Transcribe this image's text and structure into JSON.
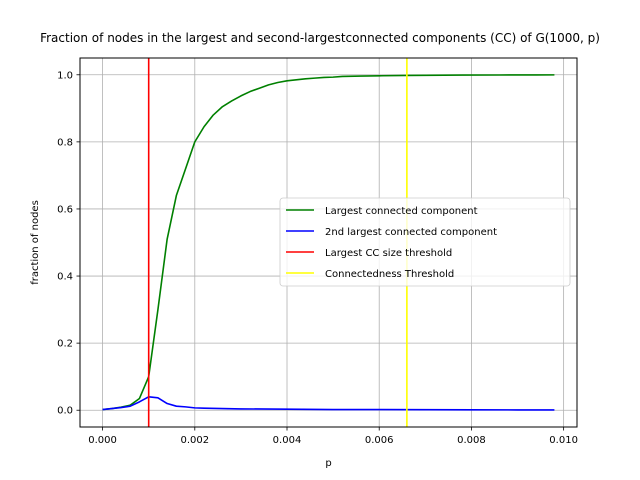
{
  "chart_data": {
    "type": "line",
    "title": "Fraction of nodes in the largest and second-largestconnected components (CC) of G(1000, p)",
    "xlabel": "p",
    "ylabel": "fraction of nodes",
    "xlim": [
      -0.00049,
      0.01029
    ],
    "ylim": [
      -0.05,
      1.05
    ],
    "xticks": [
      0.0,
      0.002,
      0.004,
      0.006,
      0.008,
      0.01
    ],
    "xtick_labels": [
      "0.000",
      "0.002",
      "0.004",
      "0.006",
      "0.008",
      "0.010"
    ],
    "yticks": [
      0.0,
      0.2,
      0.4,
      0.6,
      0.8,
      1.0
    ],
    "ytick_labels": [
      "0.0",
      "0.2",
      "0.4",
      "0.6",
      "0.8",
      "1.0"
    ],
    "grid": true,
    "legend_position": "center-right",
    "series": [
      {
        "name": "Largest connected component",
        "color": "#008000",
        "x": [
          0.0,
          0.0002,
          0.0004,
          0.0006,
          0.0008,
          0.001,
          0.0012,
          0.0014,
          0.0016,
          0.0018,
          0.002,
          0.0022,
          0.0024,
          0.0026,
          0.0028,
          0.003,
          0.0032,
          0.0034,
          0.0036,
          0.0038,
          0.004,
          0.0042,
          0.0044,
          0.0046,
          0.0048,
          0.005,
          0.0052,
          0.0056,
          0.006,
          0.0066,
          0.007,
          0.0078,
          0.0086,
          0.0094,
          0.0098
        ],
        "y": [
          0.002,
          0.005,
          0.009,
          0.015,
          0.035,
          0.1,
          0.3,
          0.51,
          0.64,
          0.72,
          0.8,
          0.845,
          0.88,
          0.905,
          0.922,
          0.937,
          0.95,
          0.96,
          0.97,
          0.977,
          0.982,
          0.985,
          0.988,
          0.99,
          0.992,
          0.993,
          0.995,
          0.996,
          0.997,
          0.998,
          0.9985,
          0.999,
          0.9993,
          0.9996,
          0.9997
        ]
      },
      {
        "name": "2nd largest connected component",
        "color": "#0000ff",
        "x": [
          0.0,
          0.0002,
          0.0004,
          0.0006,
          0.0008,
          0.001,
          0.0012,
          0.0014,
          0.0016,
          0.0018,
          0.002,
          0.0022,
          0.0026,
          0.003,
          0.004,
          0.005,
          0.006,
          0.007,
          0.008,
          0.009,
          0.0098
        ],
        "y": [
          0.002,
          0.005,
          0.008,
          0.012,
          0.025,
          0.04,
          0.037,
          0.02,
          0.012,
          0.01,
          0.007,
          0.006,
          0.005,
          0.004,
          0.003,
          0.002,
          0.002,
          0.0015,
          0.0012,
          0.001,
          0.001
        ]
      }
    ],
    "vlines": [
      {
        "name": "Largest CC size threshold",
        "color": "#ff0000",
        "x": 0.001
      },
      {
        "name": "Connectedness Threshold",
        "color": "#ffff00",
        "x": 0.0066
      }
    ]
  }
}
